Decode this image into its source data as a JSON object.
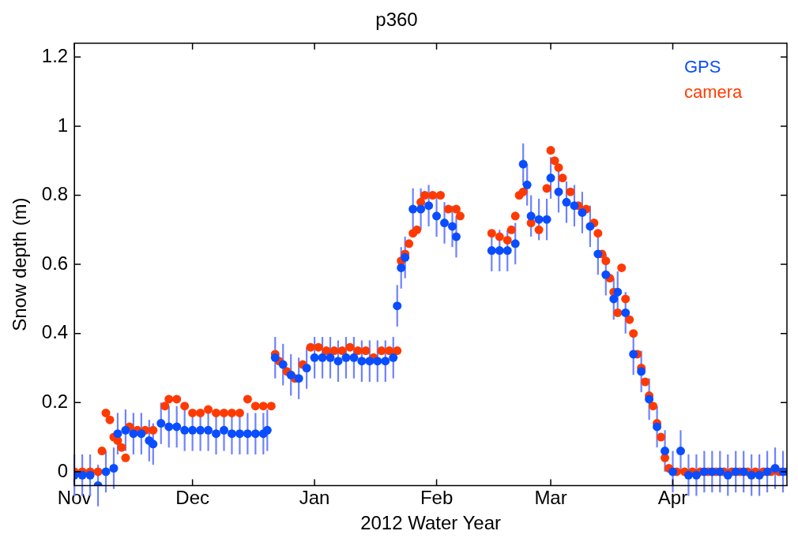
{
  "chart_data": {
    "type": "scatter",
    "title": "p360",
    "xlabel": "2012 Water Year",
    "ylabel": "Snow depth (m)",
    "xlim": [
      "2011-11-01",
      "2012-04-30"
    ],
    "xticks": [
      {
        "value": "2011-11-01",
        "label": "Nov"
      },
      {
        "value": "2011-12-01",
        "label": "Dec"
      },
      {
        "value": "2012-01-01",
        "label": "Jan"
      },
      {
        "value": "2012-02-01",
        "label": "Feb"
      },
      {
        "value": "2012-03-01",
        "label": "Mar"
      },
      {
        "value": "2012-04-01",
        "label": "Apr"
      }
    ],
    "ylim": [
      -0.04,
      1.24
    ],
    "yticks": [
      0,
      0.2,
      0.4,
      0.6,
      0.8,
      1,
      1.2
    ],
    "grid": false,
    "legend": "top right",
    "marker": "circle",
    "series": [
      {
        "name": "GPS",
        "color": "#0a4dff",
        "x": [
          "2011-11-01",
          "2011-11-03",
          "2011-11-05",
          "2011-11-07",
          "2011-11-09",
          "2011-11-11",
          "2011-11-12",
          "2011-11-14",
          "2011-11-16",
          "2011-11-18",
          "2011-11-20",
          "2011-11-21",
          "2011-11-23",
          "2011-11-25",
          "2011-11-27",
          "2011-11-29",
          "2011-12-01",
          "2011-12-03",
          "2011-12-05",
          "2011-12-07",
          "2011-12-09",
          "2011-12-11",
          "2011-12-13",
          "2011-12-15",
          "2011-12-17",
          "2011-12-19",
          "2011-12-20",
          "2011-12-22",
          "2011-12-24",
          "2011-12-26",
          "2011-12-28",
          "2011-12-30",
          "2012-01-01",
          "2012-01-03",
          "2012-01-05",
          "2012-01-07",
          "2012-01-09",
          "2012-01-11",
          "2012-01-13",
          "2012-01-15",
          "2012-01-17",
          "2012-01-19",
          "2012-01-21",
          "2012-01-22",
          "2012-01-23",
          "2012-01-24",
          "2012-01-26",
          "2012-01-28",
          "2012-01-30",
          "2012-02-01",
          "2012-02-03",
          "2012-02-05",
          "2012-02-06",
          "2012-02-15",
          "2012-02-17",
          "2012-02-19",
          "2012-02-21",
          "2012-02-23",
          "2012-02-24",
          "2012-02-25",
          "2012-02-27",
          "2012-02-29",
          "2012-03-01",
          "2012-03-03",
          "2012-03-05",
          "2012-03-07",
          "2012-03-09",
          "2012-03-11",
          "2012-03-13",
          "2012-03-15",
          "2012-03-17",
          "2012-03-18",
          "2012-03-20",
          "2012-03-22",
          "2012-03-24",
          "2012-03-26",
          "2012-03-28",
          "2012-03-30",
          "2012-04-01",
          "2012-04-03",
          "2012-04-05",
          "2012-04-07",
          "2012-04-09",
          "2012-04-11",
          "2012-04-13",
          "2012-04-15",
          "2012-04-17",
          "2012-04-19",
          "2012-04-21",
          "2012-04-23",
          "2012-04-25",
          "2012-04-27",
          "2012-04-29"
        ],
        "values": [
          -0.01,
          -0.01,
          -0.01,
          -0.04,
          0.0,
          0.01,
          0.11,
          0.12,
          0.11,
          0.11,
          0.09,
          0.08,
          0.14,
          0.13,
          0.13,
          0.12,
          0.12,
          0.12,
          0.12,
          0.11,
          0.12,
          0.11,
          0.11,
          0.11,
          0.11,
          0.11,
          0.12,
          0.33,
          0.31,
          0.28,
          0.27,
          0.3,
          0.33,
          0.33,
          0.33,
          0.32,
          0.33,
          0.33,
          0.32,
          0.32,
          0.32,
          0.32,
          0.33,
          0.48,
          0.59,
          0.62,
          0.76,
          0.76,
          0.77,
          0.74,
          0.72,
          0.71,
          0.68,
          0.64,
          0.64,
          0.64,
          0.66,
          0.89,
          0.83,
          0.74,
          0.73,
          0.73,
          0.85,
          0.81,
          0.78,
          0.77,
          0.75,
          0.71,
          0.63,
          0.57,
          0.5,
          0.52,
          0.46,
          0.34,
          0.29,
          0.21,
          0.13,
          0.06,
          0.0,
          0.06,
          -0.01,
          -0.01,
          0.0,
          0.0,
          0.0,
          -0.01,
          0.0,
          0.0,
          -0.01,
          -0.01,
          0.0,
          0.01,
          0.0
        ],
        "errors": [
          0.06,
          0.06,
          0.06,
          0.06,
          0.06,
          0.06,
          0.06,
          0.06,
          0.06,
          0.06,
          0.06,
          0.06,
          0.06,
          0.06,
          0.06,
          0.06,
          0.06,
          0.06,
          0.06,
          0.06,
          0.06,
          0.06,
          0.06,
          0.06,
          0.06,
          0.06,
          0.06,
          0.06,
          0.06,
          0.06,
          0.06,
          0.06,
          0.06,
          0.06,
          0.06,
          0.06,
          0.06,
          0.06,
          0.06,
          0.06,
          0.06,
          0.06,
          0.06,
          0.06,
          0.06,
          0.06,
          0.06,
          0.06,
          0.06,
          0.06,
          0.06,
          0.06,
          0.06,
          0.06,
          0.06,
          0.06,
          0.06,
          0.06,
          0.06,
          0.06,
          0.06,
          0.06,
          0.06,
          0.06,
          0.06,
          0.06,
          0.06,
          0.06,
          0.06,
          0.06,
          0.06,
          0.06,
          0.06,
          0.06,
          0.06,
          0.06,
          0.06,
          0.06,
          0.06,
          0.06,
          0.06,
          0.06,
          0.06,
          0.06,
          0.06,
          0.06,
          0.06,
          0.06,
          0.06,
          0.06,
          0.06,
          0.06,
          0.06
        ]
      },
      {
        "name": "camera",
        "color": "#ff3a00",
        "x": [
          "2011-11-01",
          "2011-11-03",
          "2011-11-05",
          "2011-11-07",
          "2011-11-08",
          "2011-11-09",
          "2011-11-10",
          "2011-11-11",
          "2011-11-12",
          "2011-11-13",
          "2011-11-14",
          "2011-11-15",
          "2011-11-17",
          "2011-11-19",
          "2011-11-21",
          "2011-11-24",
          "2011-11-25",
          "2011-11-27",
          "2011-11-29",
          "2011-12-01",
          "2011-12-03",
          "2011-12-05",
          "2011-12-07",
          "2011-12-09",
          "2011-12-11",
          "2011-12-13",
          "2011-12-15",
          "2011-12-17",
          "2011-12-19",
          "2011-12-21",
          "2011-12-22",
          "2011-12-23",
          "2011-12-25",
          "2011-12-27",
          "2011-12-29",
          "2011-12-31",
          "2012-01-02",
          "2012-01-04",
          "2012-01-06",
          "2012-01-08",
          "2012-01-10",
          "2012-01-12",
          "2012-01-14",
          "2012-01-16",
          "2012-01-18",
          "2012-01-20",
          "2012-01-22",
          "2012-01-23",
          "2012-01-24",
          "2012-01-25",
          "2012-01-26",
          "2012-01-27",
          "2012-01-28",
          "2012-01-29",
          "2012-01-31",
          "2012-02-02",
          "2012-02-04",
          "2012-02-06",
          "2012-02-07",
          "2012-02-15",
          "2012-02-17",
          "2012-02-19",
          "2012-02-20",
          "2012-02-21",
          "2012-02-22",
          "2012-02-23",
          "2012-02-25",
          "2012-02-27",
          "2012-02-29",
          "2012-03-01",
          "2012-03-02",
          "2012-03-03",
          "2012-03-04",
          "2012-03-06",
          "2012-03-08",
          "2012-03-10",
          "2012-03-12",
          "2012-03-13",
          "2012-03-14",
          "2012-03-15",
          "2012-03-16",
          "2012-03-17",
          "2012-03-18",
          "2012-03-19",
          "2012-03-20",
          "2012-03-21",
          "2012-03-22",
          "2012-03-23",
          "2012-03-24",
          "2012-03-25",
          "2012-03-26",
          "2012-03-27",
          "2012-03-28",
          "2012-03-29",
          "2012-03-30",
          "2012-03-31",
          "2012-04-02",
          "2012-04-04",
          "2012-04-06",
          "2012-04-08",
          "2012-04-10",
          "2012-04-12",
          "2012-04-14",
          "2012-04-16",
          "2012-04-18",
          "2012-04-20",
          "2012-04-22",
          "2012-04-24",
          "2012-04-26",
          "2012-04-28",
          "2012-04-30"
        ],
        "values": [
          0.0,
          0.0,
          0.0,
          0.0,
          0.06,
          0.17,
          0.15,
          0.1,
          0.09,
          0.07,
          0.04,
          0.13,
          0.12,
          0.12,
          0.12,
          0.19,
          0.21,
          0.21,
          0.19,
          0.17,
          0.17,
          0.18,
          0.17,
          0.17,
          0.17,
          0.17,
          0.21,
          0.19,
          0.19,
          0.19,
          0.34,
          0.32,
          0.29,
          0.27,
          0.31,
          0.36,
          0.36,
          0.35,
          0.35,
          0.35,
          0.36,
          0.35,
          0.35,
          0.33,
          0.35,
          0.35,
          0.35,
          0.61,
          0.63,
          0.66,
          0.69,
          0.7,
          0.78,
          0.8,
          0.8,
          0.8,
          0.76,
          0.76,
          0.74,
          0.69,
          0.68,
          0.67,
          0.7,
          0.74,
          0.8,
          0.81,
          0.72,
          0.7,
          0.82,
          0.93,
          0.9,
          0.88,
          0.85,
          0.81,
          0.77,
          0.76,
          0.72,
          0.69,
          0.63,
          0.61,
          0.56,
          0.52,
          0.46,
          0.59,
          0.5,
          0.44,
          0.4,
          0.34,
          0.3,
          0.26,
          0.22,
          0.19,
          0.14,
          0.1,
          0.04,
          0.01,
          0.0,
          0.0,
          0.0,
          0.0,
          0.0,
          0.0,
          0.0,
          0.0,
          0.0,
          0.0,
          0.0,
          0.0,
          0.0,
          0.0,
          0.0
        ]
      }
    ]
  }
}
